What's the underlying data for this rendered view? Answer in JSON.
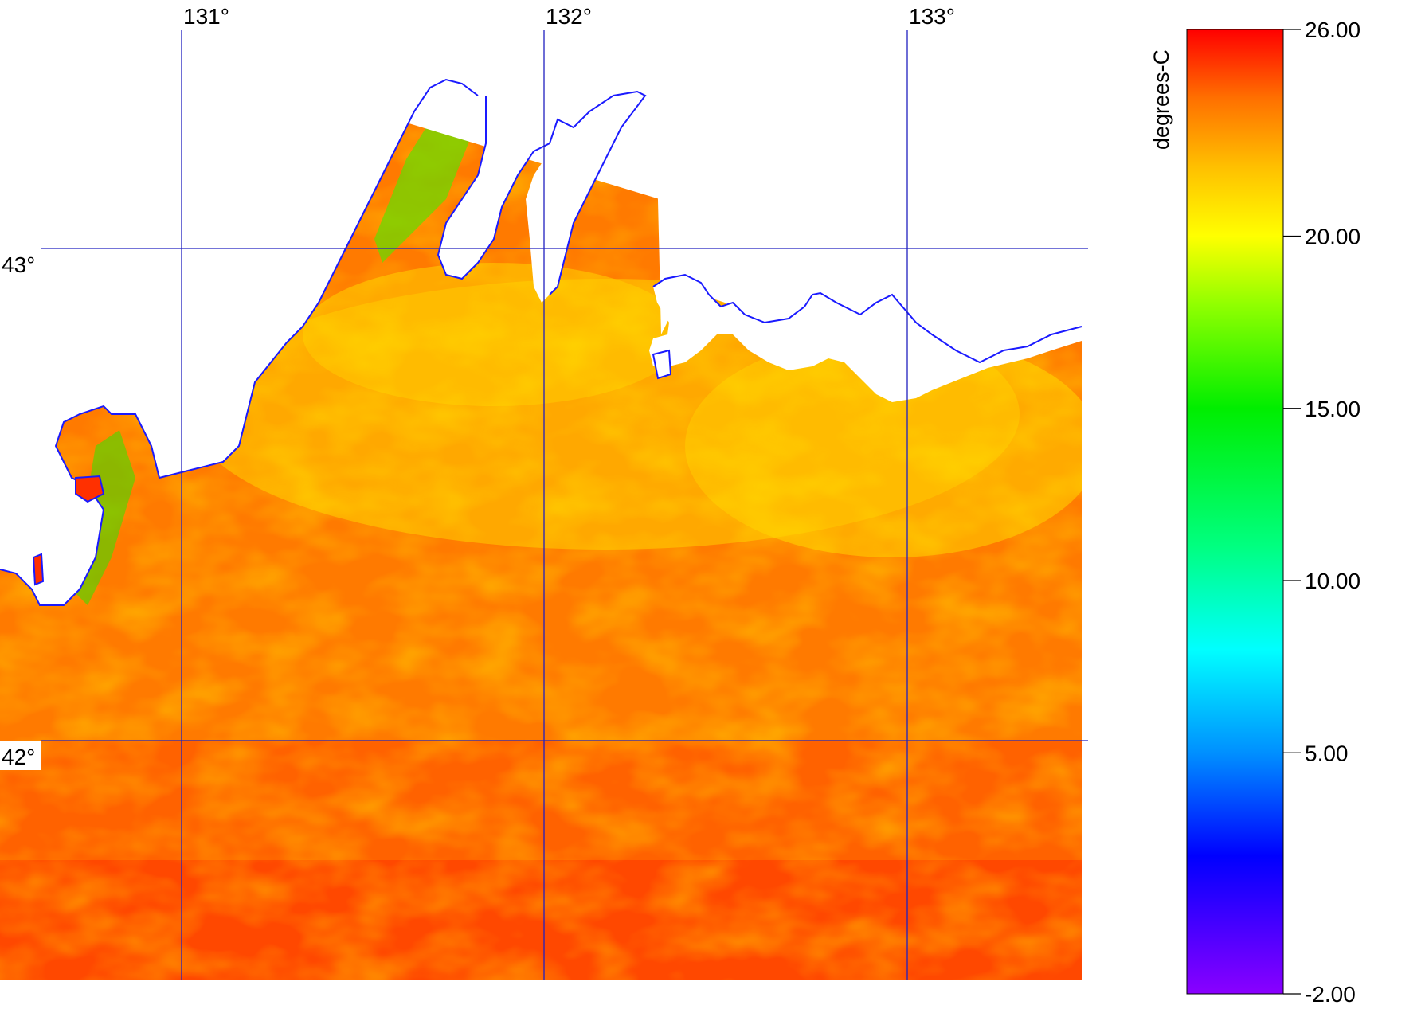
{
  "map": {
    "colorbar": {
      "unit_label": "degrees-C",
      "min": -2.0,
      "max": 26.0,
      "ticks": [
        {
          "value": 26.0,
          "label": "26.00"
        },
        {
          "value": 20.0,
          "label": "20.00"
        },
        {
          "value": 15.0,
          "label": "15.00"
        },
        {
          "value": 10.0,
          "label": "10.00"
        },
        {
          "value": 5.0,
          "label": "5.00"
        },
        {
          "value": -2.0,
          "label": "-2.00"
        }
      ],
      "stops": [
        {
          "value": -2.0,
          "color": "#8a00ff"
        },
        {
          "value": 2.0,
          "color": "#0000ff"
        },
        {
          "value": 5.0,
          "color": "#0090ff"
        },
        {
          "value": 8.0,
          "color": "#00ffff"
        },
        {
          "value": 11.0,
          "color": "#00ff80"
        },
        {
          "value": 15.0,
          "color": "#00ee00"
        },
        {
          "value": 18.0,
          "color": "#90ff00"
        },
        {
          "value": 20.0,
          "color": "#ffff00"
        },
        {
          "value": 22.0,
          "color": "#ffc000"
        },
        {
          "value": 24.0,
          "color": "#ff7000"
        },
        {
          "value": 26.0,
          "color": "#ff0000"
        }
      ]
    },
    "lon_labels": [
      "131°",
      "132°",
      "133°"
    ],
    "lat_labels": [
      "43°",
      "42°"
    ],
    "colors": {
      "graticule": "#2020c0",
      "coastline": "#1a1aff",
      "land": "#ffffff"
    }
  }
}
